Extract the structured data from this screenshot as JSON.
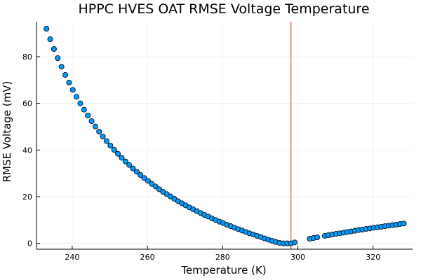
{
  "chart_data": {
    "type": "scatter",
    "title": "HPPC HVES OAT RMSE Voltage Temperature",
    "xlabel": "Temperature (K)",
    "ylabel": "RMSE Voltage (mV)",
    "xlim": [
      230.5,
      330.5
    ],
    "ylim": [
      -2.5,
      95
    ],
    "xticks": [
      240,
      260,
      280,
      300,
      320
    ],
    "yticks": [
      0,
      20,
      40,
      60,
      80
    ],
    "grid": true,
    "legend": "none",
    "marker_color": "#009AFA",
    "vline_color": "#E26F46",
    "vline_x": 298.15,
    "series": [
      {
        "x": [
          233.15,
          234.15,
          235.15,
          236.15,
          237.15,
          238.15,
          239.15,
          240.15,
          241.15,
          242.15,
          243.15,
          244.15,
          245.15,
          246.15,
          247.15,
          248.15,
          249.15,
          250.15,
          251.15,
          252.15,
          253.15,
          254.15,
          255.15,
          256.15,
          257.15,
          258.15,
          259.15,
          260.15,
          261.15,
          262.15,
          263.15,
          264.15,
          265.15,
          266.15,
          267.15,
          268.15,
          269.15,
          270.15,
          271.15,
          272.15,
          273.15,
          274.15,
          275.15,
          276.15,
          277.15,
          278.15,
          279.15,
          280.15,
          281.15,
          282.15,
          283.15,
          284.15,
          285.15,
          286.15,
          287.15,
          288.15,
          289.15,
          290.15,
          291.15,
          292.15,
          293.15,
          294.15,
          295.15,
          296.15,
          297.15,
          298.15,
          299.15,
          303.15,
          304.15,
          305.15,
          307.15,
          308.15,
          309.15,
          310.15,
          311.15,
          312.15,
          313.15,
          314.15,
          315.15,
          316.15,
          317.15,
          318.15,
          319.15,
          320.15,
          321.15,
          322.15,
          323.15,
          324.15,
          325.15,
          326.15,
          327.15,
          328.15
        ],
        "y": [
          92.0,
          87.5,
          83.3,
          79.4,
          75.7,
          72.2,
          68.9,
          65.8,
          62.8,
          60.0,
          57.3,
          54.8,
          52.4,
          50.1,
          47.9,
          45.8,
          43.8,
          41.9,
          40.1,
          38.4,
          36.7,
          35.1,
          33.6,
          32.1,
          30.7,
          29.3,
          28.0,
          26.8,
          25.5,
          24.4,
          23.2,
          22.1,
          21.1,
          20.1,
          19.1,
          18.1,
          17.2,
          16.3,
          15.4,
          14.6,
          13.8,
          13.0,
          12.2,
          11.5,
          10.7,
          10.0,
          9.3,
          8.7,
          8.0,
          7.4,
          6.7,
          6.1,
          5.5,
          4.9,
          4.3,
          3.8,
          3.2,
          2.7,
          2.1,
          1.6,
          1.1,
          0.6,
          0.2,
          0.0,
          0.0,
          0.0,
          0.4,
          2.0,
          2.3,
          2.6,
          3.2,
          3.5,
          3.8,
          4.1,
          4.3,
          4.6,
          4.9,
          5.1,
          5.4,
          5.7,
          5.9,
          6.2,
          6.4,
          6.7,
          6.9,
          7.1,
          7.4,
          7.6,
          7.8,
          8.0,
          8.3,
          8.5
        ]
      }
    ]
  }
}
